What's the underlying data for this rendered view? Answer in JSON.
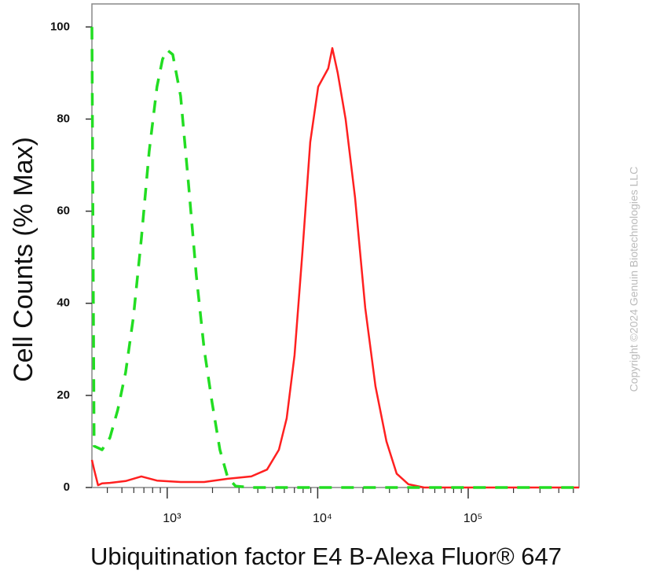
{
  "chart_data": {
    "type": "line",
    "y_label": "Cell Counts (% Max)",
    "x_label": "Ubiquitination factor E4 B-Alexa Fluor® 647",
    "watermark": "Copyright ©2024 Genuin Biotechnologies LLC",
    "x_scale": "log",
    "xlim": [
      316,
      545000
    ],
    "ylim": [
      0,
      105
    ],
    "xticks": [
      {
        "value": 1000,
        "label": "10³"
      },
      {
        "value": 10000,
        "label": "10⁴"
      },
      {
        "value": 100000,
        "label": "10⁵"
      }
    ],
    "xminorticks": [
      400,
      500,
      600,
      700,
      800,
      900,
      2000,
      3000,
      4000,
      5000,
      6000,
      7000,
      8000,
      9000,
      20000,
      30000,
      40000,
      50000,
      60000,
      70000,
      80000,
      90000,
      200000,
      300000,
      400000,
      500000
    ],
    "yticks": [
      0,
      20,
      40,
      60,
      80,
      100
    ],
    "series": [
      {
        "color": "#ff2020",
        "dash": false,
        "x": [
          316,
          327,
          347,
          369,
          416,
          529,
          673,
          855,
          1227,
          1760,
          2523,
          3620,
          4604,
          5520,
          6220,
          7015,
          7910,
          8920,
          10070,
          11750,
          12500,
          13590,
          15320,
          17700,
          20700,
          24200,
          28640,
          33490,
          40100,
          51000,
          545000
        ],
        "values": [
          6,
          3.9,
          0.5,
          0.9,
          1,
          1.4,
          2.4,
          1.5,
          1.2,
          1.2,
          1.9,
          2.4,
          3.9,
          8.2,
          15,
          28.7,
          51,
          75,
          87,
          91,
          95.4,
          90,
          80,
          63,
          39,
          22,
          10,
          3,
          0.7,
          0,
          0
        ]
      },
      {
        "color": "#22dd22",
        "dash": true,
        "x": [
          316,
          327,
          369,
          416,
          469,
          529,
          596,
          673,
          759,
          855,
          931,
          1000,
          1088,
          1227,
          1384,
          1561,
          1760,
          1985,
          2238,
          2523,
          2846,
          3620,
          545000
        ],
        "values": [
          100,
          9,
          8.2,
          10.8,
          16.8,
          25,
          37,
          54,
          73,
          87,
          93,
          95,
          94,
          85,
          66,
          46,
          30,
          18.5,
          8.2,
          2.2,
          0.3,
          0,
          0
        ]
      }
    ]
  }
}
